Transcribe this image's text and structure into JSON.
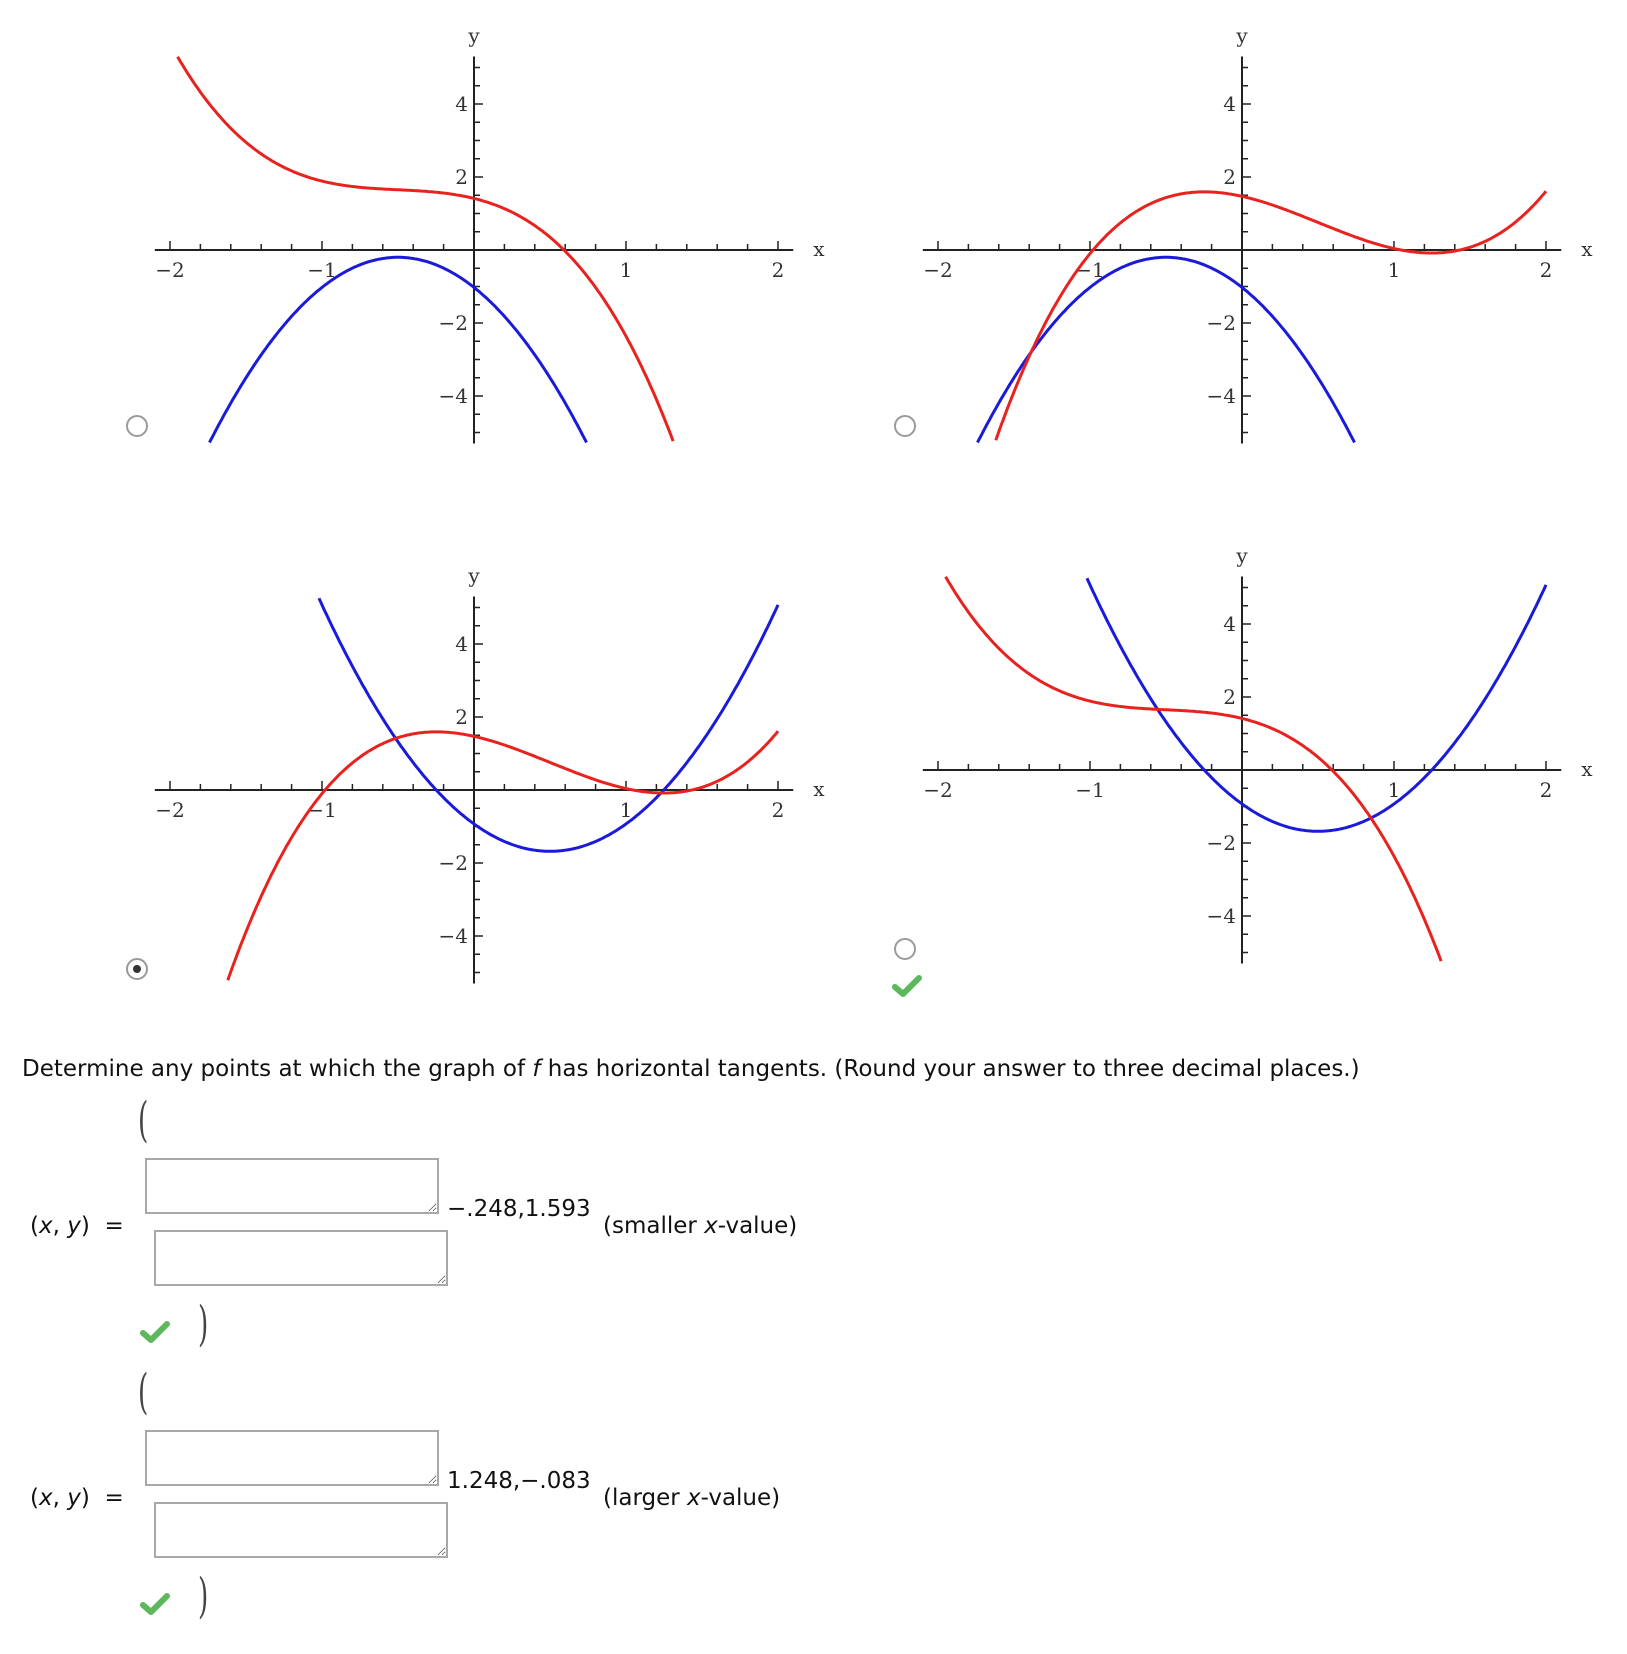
{
  "colors": {
    "function_curve": "#e8231f",
    "derivative_curve": "#1a1adb",
    "axis": "#222222",
    "check": "#5cb85c",
    "radio_border": "#9a9a9a",
    "box_border": "#a8a8a8"
  },
  "options": [
    {
      "id": "option-1",
      "selected": false,
      "correct_mark": false
    },
    {
      "id": "option-2",
      "selected": false,
      "correct_mark": false
    },
    {
      "id": "option-3",
      "selected": true,
      "correct_mark": false
    },
    {
      "id": "option-4",
      "selected": false,
      "correct_mark": true
    }
  ],
  "axes": {
    "x_label": "x",
    "y_label": "y",
    "x_ticks": [
      "−2",
      "−1",
      "1",
      "2"
    ],
    "y_ticks": [
      "4",
      "2",
      "−2",
      "−4"
    ]
  },
  "question": {
    "prefix": "Determine any points at which the graph of ",
    "var": "f",
    "suffix": " has horizontal tangents. (Round your answer to three decimal places.)"
  },
  "answers": [
    {
      "lhs_x": "x",
      "lhs_y": "y",
      "value": "−.248,1.593",
      "hint_prefix": "(smaller ",
      "hint_var": "x",
      "hint_suffix": "-value)",
      "box1_value": "",
      "box2_value": "",
      "open_paren": "(",
      "close_paren": ")",
      "correct": true
    },
    {
      "lhs_x": "x",
      "lhs_y": "y",
      "value": "1.248,−.083",
      "hint_prefix": "(larger ",
      "hint_var": "x",
      "hint_suffix": "-value)",
      "box1_value": "",
      "box2_value": "",
      "open_paren": "(",
      "close_paren": ")",
      "correct": true
    }
  ],
  "chart_data": [
    {
      "type": "line",
      "title": "Option 1",
      "xlabel": "x",
      "ylabel": "y",
      "xlim": [
        -2,
        2
      ],
      "ylim": [
        -5.2,
        5.2
      ],
      "x_ticks": [
        -2,
        -1,
        1,
        2
      ],
      "y_ticks": [
        4,
        2,
        -2,
        -4
      ],
      "grid": false,
      "series": [
        {
          "name": "red curve (f)",
          "color": "#e8231f",
          "x": [
            -2,
            -1.5,
            -1,
            -0.5,
            0,
            0.5,
            0.6,
            1,
            1.4
          ],
          "y": [
            5.3,
            2.9,
            1.9,
            1.65,
            1.41,
            0.35,
            0.0,
            -1.8,
            -5.2
          ]
        },
        {
          "name": "blue curve (f')",
          "color": "#1a1adb",
          "x": [
            -1.85,
            -1.5,
            -1,
            -0.5,
            0,
            0.5,
            0.8
          ],
          "y": [
            -5.2,
            -3.5,
            -1.0,
            -0.2,
            -1.0,
            -3.5,
            -5.2
          ]
        }
      ]
    },
    {
      "type": "line",
      "title": "Option 2",
      "xlabel": "x",
      "ylabel": "y",
      "xlim": [
        -2,
        2
      ],
      "ylim": [
        -5.2,
        5.2
      ],
      "x_ticks": [
        -2,
        -1,
        1,
        2
      ],
      "y_ticks": [
        4,
        2,
        -2,
        -4
      ],
      "grid": false,
      "series": [
        {
          "name": "red curve",
          "color": "#e8231f",
          "x": [
            -1.65,
            -1.3,
            -1,
            -0.248,
            0,
            0.5,
            1,
            1.248,
            2
          ],
          "y": [
            -5.2,
            -2.1,
            0.0,
            1.593,
            1.47,
            0.63,
            0.04,
            -0.083,
            1.6
          ]
        },
        {
          "name": "blue curve",
          "color": "#1a1adb",
          "x": [
            -1.85,
            -1.5,
            -1,
            -0.5,
            0,
            0.5,
            0.8
          ],
          "y": [
            -5.2,
            -3.5,
            -1.0,
            -0.2,
            -1.0,
            -3.5,
            -5.2
          ]
        }
      ]
    },
    {
      "type": "line",
      "title": "Option 3 (selected)",
      "xlabel": "x",
      "ylabel": "y",
      "xlim": [
        -2,
        2
      ],
      "ylim": [
        -5.2,
        5.2
      ],
      "x_ticks": [
        -2,
        -1,
        1,
        2
      ],
      "y_ticks": [
        4,
        2,
        -2,
        -4
      ],
      "grid": false,
      "series": [
        {
          "name": "red curve (f)",
          "color": "#e8231f",
          "x": [
            -1.65,
            -1.3,
            -1,
            -0.248,
            0,
            0.5,
            1,
            1.248,
            2
          ],
          "y": [
            -5.2,
            -2.1,
            0.0,
            1.593,
            1.47,
            0.63,
            0.04,
            -0.083,
            1.6
          ]
        },
        {
          "name": "blue curve (f')",
          "color": "#1a1adb",
          "x": [
            -1,
            -0.5,
            -0.248,
            0,
            0.5,
            1,
            1.248,
            2
          ],
          "y": [
            5.07,
            1.32,
            0.0,
            -0.93,
            -1.68,
            -0.93,
            0.0,
            5.07
          ]
        }
      ]
    },
    {
      "type": "line",
      "title": "Option 4 (marked correct)",
      "xlabel": "x",
      "ylabel": "y",
      "xlim": [
        -2,
        2
      ],
      "ylim": [
        -5.2,
        5.2
      ],
      "x_ticks": [
        -2,
        -1,
        1,
        2
      ],
      "y_ticks": [
        4,
        2,
        -2,
        -4
      ],
      "grid": false,
      "series": [
        {
          "name": "red curve",
          "color": "#e8231f",
          "x": [
            -2,
            -1.5,
            -1,
            -0.5,
            0,
            0.5,
            0.6,
            1,
            1.4
          ],
          "y": [
            5.3,
            2.9,
            1.9,
            1.65,
            1.41,
            0.35,
            0.0,
            -1.8,
            -5.2
          ]
        },
        {
          "name": "blue curve",
          "color": "#1a1adb",
          "x": [
            -1,
            -0.5,
            -0.248,
            0,
            0.5,
            1,
            1.248,
            2
          ],
          "y": [
            5.07,
            1.32,
            0.0,
            -0.93,
            -1.68,
            -0.93,
            0.0,
            5.07
          ]
        }
      ]
    }
  ]
}
